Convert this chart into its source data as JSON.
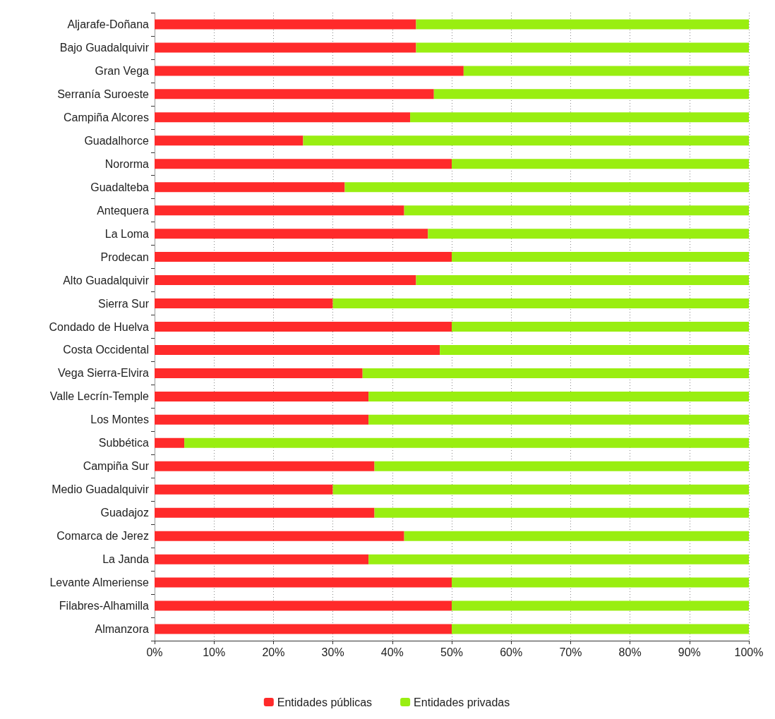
{
  "chart_data": {
    "type": "bar",
    "orientation": "horizontal",
    "stacked": true,
    "categories": [
      "Aljarafe-Doñana",
      "Bajo Guadalquivir",
      "Gran Vega",
      "Serranía Suroeste",
      "Campiña Alcores",
      "Guadalhorce",
      "Nororma",
      "Guadalteba",
      "Antequera",
      "La Loma",
      "Prodecan",
      "Alto Guadalquivir",
      "Sierra Sur",
      "Condado de Huelva",
      "Costa Occidental",
      "Vega Sierra-Elvira",
      "Valle Lecrín-Temple",
      "Los Montes",
      "Subbética",
      "Campiña Sur",
      "Medio Guadalquivir",
      "Guadajoz",
      "Comarca de Jerez",
      "La Janda",
      "Levante Almeriense",
      "Filabres-Alhamilla",
      "Almanzora"
    ],
    "series": [
      {
        "name": "Entidades públicas",
        "color": "#ff2a2a",
        "values": [
          44,
          44,
          52,
          47,
          43,
          25,
          50,
          32,
          42,
          46,
          50,
          44,
          30,
          50,
          48,
          35,
          36,
          36,
          5,
          37,
          30,
          37,
          42,
          36,
          50,
          50,
          50
        ]
      },
      {
        "name": "Entidades privadas",
        "color": "#99ee11",
        "values": [
          56,
          56,
          48,
          53,
          57,
          75,
          50,
          68,
          58,
          54,
          50,
          56,
          70,
          50,
          52,
          65,
          64,
          64,
          95,
          63,
          70,
          63,
          58,
          64,
          50,
          50,
          50
        ]
      }
    ],
    "xlim": [
      0,
      100
    ],
    "xticks": [
      {
        "value": 0,
        "label": "0%"
      },
      {
        "value": 10,
        "label": "10%"
      },
      {
        "value": 20,
        "label": "20%"
      },
      {
        "value": 30,
        "label": "30%"
      },
      {
        "value": 40,
        "label": "40%"
      },
      {
        "value": 50,
        "label": "50%"
      },
      {
        "value": 60,
        "label": "60%"
      },
      {
        "value": 70,
        "label": "70%"
      },
      {
        "value": 80,
        "label": "80%"
      },
      {
        "value": 90,
        "label": "90%"
      },
      {
        "value": 100,
        "label": "100%"
      }
    ],
    "grid": "x",
    "legend": "bottom"
  }
}
